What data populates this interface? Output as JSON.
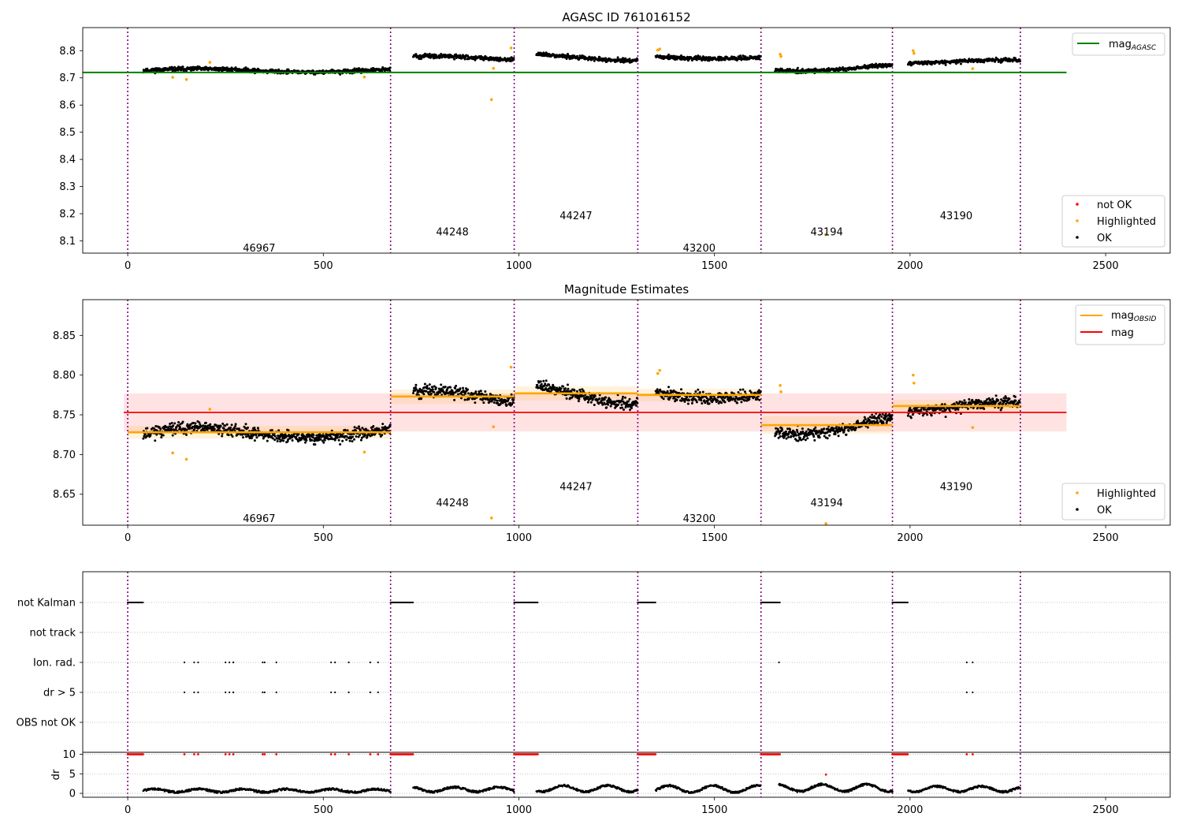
{
  "chart_data": [
    {
      "type": "scatter",
      "title": "AGASC ID 761016152",
      "xlim": [
        -115,
        2665
      ],
      "ylim": [
        8.055,
        8.885
      ],
      "x_ticks": [
        0,
        500,
        1000,
        1500,
        2000,
        2500
      ],
      "y_ticks": [
        8.1,
        8.2,
        8.3,
        8.4,
        8.5,
        8.6,
        8.7,
        8.8
      ],
      "y_tick_labels": [
        "8.1",
        "8.2",
        "8.3",
        "8.4",
        "8.5",
        "8.6",
        "8.7",
        "8.8"
      ],
      "obs_boundaries": [
        0,
        672,
        988,
        1304,
        1619,
        1955,
        2282
      ],
      "obsids": [
        {
          "label": "46967",
          "x": 336,
          "y": 8.075
        },
        {
          "label": "44248",
          "x": 830,
          "y": 8.135
        },
        {
          "label": "44247",
          "x": 1146,
          "y": 8.195
        },
        {
          "label": "43200",
          "x": 1461,
          "y": 8.075
        },
        {
          "label": "43194",
          "x": 1787,
          "y": 8.135
        },
        {
          "label": "43190",
          "x": 2118,
          "y": 8.195
        }
      ],
      "reference_line": {
        "label_main": "mag",
        "label_sub": "AGASC",
        "color": "#008000",
        "y": 8.72,
        "x_range": [
          -115,
          2400
        ]
      },
      "segments": [
        {
          "x_start": 40,
          "x_end": 672,
          "base": 8.727,
          "amp": 0.006,
          "noise": 0.012
        },
        {
          "x_start": 730,
          "x_end": 988,
          "base": 8.772,
          "amp": 0.008,
          "noise": 0.012
        },
        {
          "x_start": 1045,
          "x_end": 1304,
          "base": 8.776,
          "amp": 0.012,
          "noise": 0.012
        },
        {
          "x_start": 1350,
          "x_end": 1619,
          "base": 8.776,
          "amp": 0.005,
          "noise": 0.012
        },
        {
          "x_start": 1655,
          "x_end": 1955,
          "base": 8.737,
          "amp": 0.012,
          "noise": 0.012
        },
        {
          "x_start": 1995,
          "x_end": 2282,
          "base": 8.76,
          "amp": 0.006,
          "noise": 0.012
        }
      ],
      "highlighted": [
        [
          115,
          8.702
        ],
        [
          150,
          8.694
        ],
        [
          210,
          8.757
        ],
        [
          605,
          8.703
        ],
        [
          930,
          8.62
        ],
        [
          935,
          8.735
        ],
        [
          980,
          8.81
        ],
        [
          1355,
          8.802
        ],
        [
          1360,
          8.806
        ],
        [
          1668,
          8.787
        ],
        [
          1670,
          8.779
        ],
        [
          1785,
          8.124
        ],
        [
          2008,
          8.8
        ],
        [
          2010,
          8.79
        ],
        [
          2160,
          8.734
        ]
      ],
      "legend_series": [
        {
          "name": "not OK",
          "color": "#ff0000"
        },
        {
          "name": "Highlighted",
          "color": "#ffa500"
        },
        {
          "name": "OK",
          "color": "#000000"
        }
      ]
    },
    {
      "type": "scatter",
      "title": "Magnitude Estimates",
      "xlim": [
        -115,
        2665
      ],
      "ylim": [
        8.611,
        8.895
      ],
      "x_ticks": [
        0,
        500,
        1000,
        1500,
        2000,
        2500
      ],
      "y_ticks": [
        8.65,
        8.7,
        8.75,
        8.8,
        8.85
      ],
      "y_tick_labels": [
        "8.65",
        "8.70",
        "8.75",
        "8.80",
        "8.85"
      ],
      "obs_boundaries": [
        0,
        672,
        988,
        1304,
        1619,
        1955,
        2282
      ],
      "obsids": [
        {
          "label": "46967",
          "x": 336,
          "y": 8.62
        },
        {
          "label": "44248",
          "x": 830,
          "y": 8.64
        },
        {
          "label": "44247",
          "x": 1146,
          "y": 8.66
        },
        {
          "label": "43200",
          "x": 1461,
          "y": 8.62
        },
        {
          "label": "43194",
          "x": 1787,
          "y": 8.64
        },
        {
          "label": "43190",
          "x": 2118,
          "y": 8.66
        }
      ],
      "mag_line": {
        "label": "mag",
        "color": "#ff0000",
        "y": 8.753,
        "band": [
          8.729,
          8.777
        ],
        "x_range": [
          -10,
          2400
        ]
      },
      "obsid_mag": {
        "label_main": "mag",
        "label_sub": "OBSID",
        "color": "#ffa500",
        "levels": [
          {
            "x_start": 0,
            "x_end": 672,
            "y": 8.728,
            "band": [
              8.72,
              8.736
            ]
          },
          {
            "x_start": 672,
            "x_end": 988,
            "y": 8.773,
            "band": [
              8.764,
              8.782
            ]
          },
          {
            "x_start": 988,
            "x_end": 1304,
            "y": 8.777,
            "band": [
              8.768,
              8.786
            ]
          },
          {
            "x_start": 1304,
            "x_end": 1619,
            "y": 8.775,
            "band": [
              8.767,
              8.783
            ]
          },
          {
            "x_start": 1619,
            "x_end": 1955,
            "y": 8.737,
            "band": [
              8.726,
              8.748
            ]
          },
          {
            "x_start": 1955,
            "x_end": 2282,
            "y": 8.761,
            "band": [
              8.753,
              8.769
            ]
          }
        ]
      },
      "segments": [
        {
          "x_start": 40,
          "x_end": 672,
          "base": 8.727,
          "amp": 0.006,
          "noise": 0.012
        },
        {
          "x_start": 730,
          "x_end": 988,
          "base": 8.772,
          "amp": 0.008,
          "noise": 0.012
        },
        {
          "x_start": 1045,
          "x_end": 1304,
          "base": 8.776,
          "amp": 0.012,
          "noise": 0.012
        },
        {
          "x_start": 1350,
          "x_end": 1619,
          "base": 8.776,
          "amp": 0.005,
          "noise": 0.012
        },
        {
          "x_start": 1655,
          "x_end": 1955,
          "base": 8.737,
          "amp": 0.012,
          "noise": 0.012
        },
        {
          "x_start": 1995,
          "x_end": 2282,
          "base": 8.76,
          "amp": 0.006,
          "noise": 0.012
        }
      ],
      "highlighted": [
        [
          115,
          8.702
        ],
        [
          150,
          8.694
        ],
        [
          210,
          8.757
        ],
        [
          605,
          8.703
        ],
        [
          930,
          8.62
        ],
        [
          935,
          8.735
        ],
        [
          980,
          8.81
        ],
        [
          1355,
          8.802
        ],
        [
          1360,
          8.806
        ],
        [
          1668,
          8.787
        ],
        [
          1670,
          8.779
        ],
        [
          1785,
          8.613
        ],
        [
          2008,
          8.8
        ],
        [
          2010,
          8.79
        ],
        [
          2160,
          8.734
        ]
      ],
      "legend_series": [
        {
          "name": "Highlighted",
          "color": "#ffa500"
        },
        {
          "name": "OK",
          "color": "#000000"
        }
      ]
    },
    {
      "type": "scatter",
      "title": "",
      "xlim": [
        -115,
        2665
      ],
      "x_ticks": [
        0,
        500,
        1000,
        1500,
        2000,
        2500
      ],
      "obs_boundaries": [
        0,
        672,
        988,
        1304,
        1619,
        1955,
        2282
      ],
      "flag_rows": [
        "not Kalman",
        "not track",
        "Ion. rad.",
        "dr > 5",
        "OBS not OK"
      ],
      "not_kalman_runs": [
        [
          0,
          40
        ],
        [
          672,
          730
        ],
        [
          988,
          1050
        ],
        [
          1304,
          1350
        ],
        [
          1619,
          1668
        ],
        [
          1955,
          1995
        ]
      ],
      "ion_rad_x": [
        145,
        170,
        180,
        250,
        260,
        270,
        345,
        350,
        380,
        520,
        530,
        565,
        620,
        640,
        1665,
        2145,
        2160
      ],
      "dr_gt5_x": [
        145,
        170,
        180,
        250,
        260,
        270,
        345,
        350,
        380,
        520,
        530,
        565,
        620,
        640,
        2145,
        2160
      ],
      "dr": {
        "ylabel": "dr",
        "ylim": [
          -1,
          10.5
        ],
        "y_ticks": [
          0,
          5,
          10
        ],
        "y_tick_labels": [
          "0",
          "5",
          "10"
        ],
        "clip_value": 10,
        "outlier": [
          1785,
          4.8
        ],
        "segments": [
          {
            "x_start": 40,
            "x_end": 672,
            "base": 0.7,
            "amp": 0.4
          },
          {
            "x_start": 730,
            "x_end": 988,
            "base": 1.0,
            "amp": 0.6
          },
          {
            "x_start": 1045,
            "x_end": 1304,
            "base": 1.2,
            "amp": 0.8
          },
          {
            "x_start": 1350,
            "x_end": 1619,
            "base": 1.1,
            "amp": 0.9
          },
          {
            "x_start": 1665,
            "x_end": 1955,
            "base": 1.4,
            "amp": 0.9
          },
          {
            "x_start": 1995,
            "x_end": 2282,
            "base": 1.1,
            "amp": 0.7
          }
        ]
      }
    }
  ]
}
